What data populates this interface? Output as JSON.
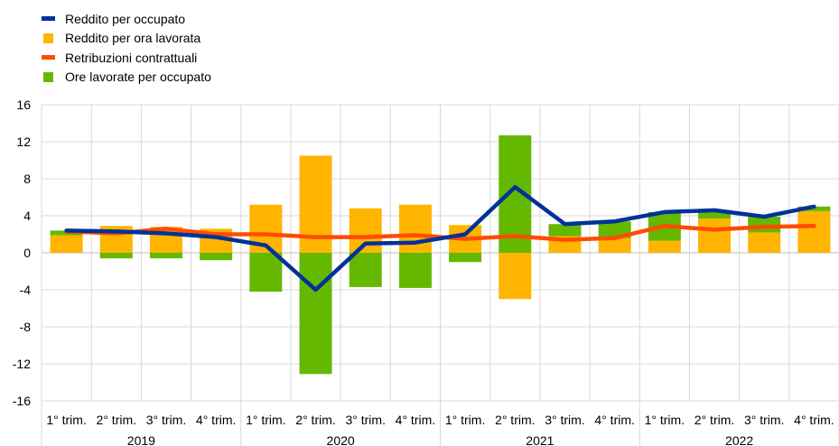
{
  "colors": {
    "reddito_per_occupato": "#003299",
    "reddito_per_ora": "#FFB400",
    "retribuzioni": "#FF4B00",
    "ore_lavorate": "#65B800",
    "grid": "#D9D9D9",
    "zero_line": "#BFBFBF"
  },
  "chart_data": {
    "type": "bar",
    "ylim": [
      -16,
      16
    ],
    "yticks": [
      "16",
      "12",
      "8",
      "4",
      "0",
      "-4",
      "-8",
      "-12",
      "-16"
    ],
    "years": [
      "2019",
      "2020",
      "2021",
      "2022"
    ],
    "categories": [
      "1° trim.",
      "2° trim.",
      "3° trim.",
      "4° trim.",
      "1° trim.",
      "2° trim.",
      "3° trim.",
      "4° trim.",
      "1° trim.",
      "2° trim.",
      "3° trim.",
      "4° trim.",
      "1° trim.",
      "2° trim.",
      "3° trim.",
      "4° trim."
    ],
    "series": [
      {
        "name": "Reddito per occupato",
        "kind": "line",
        "color_key": "reddito_per_occupato",
        "values": [
          2.4,
          2.3,
          2.1,
          1.7,
          0.8,
          -4.0,
          1.0,
          1.1,
          2.0,
          7.1,
          3.1,
          3.4,
          4.4,
          4.6,
          3.9,
          5.0
        ]
      },
      {
        "name": "Reddito per ora lavorata",
        "kind": "bar",
        "color_key": "reddito_per_ora",
        "values": [
          1.9,
          2.9,
          2.8,
          2.6,
          5.2,
          10.5,
          4.8,
          5.2,
          3.0,
          -5.0,
          1.8,
          1.6,
          1.3,
          3.7,
          2.2,
          4.5
        ]
      },
      {
        "name": "Retribuzioni contrattuali",
        "kind": "line",
        "color_key": "retribuzioni",
        "values": [
          2.3,
          2.1,
          2.6,
          2.0,
          2.0,
          1.7,
          1.7,
          1.9,
          1.5,
          1.8,
          1.4,
          1.6,
          2.9,
          2.5,
          2.8,
          2.9
        ]
      },
      {
        "name": "Ore lavorate per occupato",
        "kind": "bar",
        "color_key": "ore_lavorate",
        "values": [
          0.5,
          -0.6,
          -0.6,
          -0.8,
          -4.2,
          -13.1,
          -3.7,
          -3.8,
          -1.0,
          12.7,
          1.3,
          1.8,
          3.1,
          0.9,
          1.7,
          0.5
        ]
      }
    ]
  }
}
